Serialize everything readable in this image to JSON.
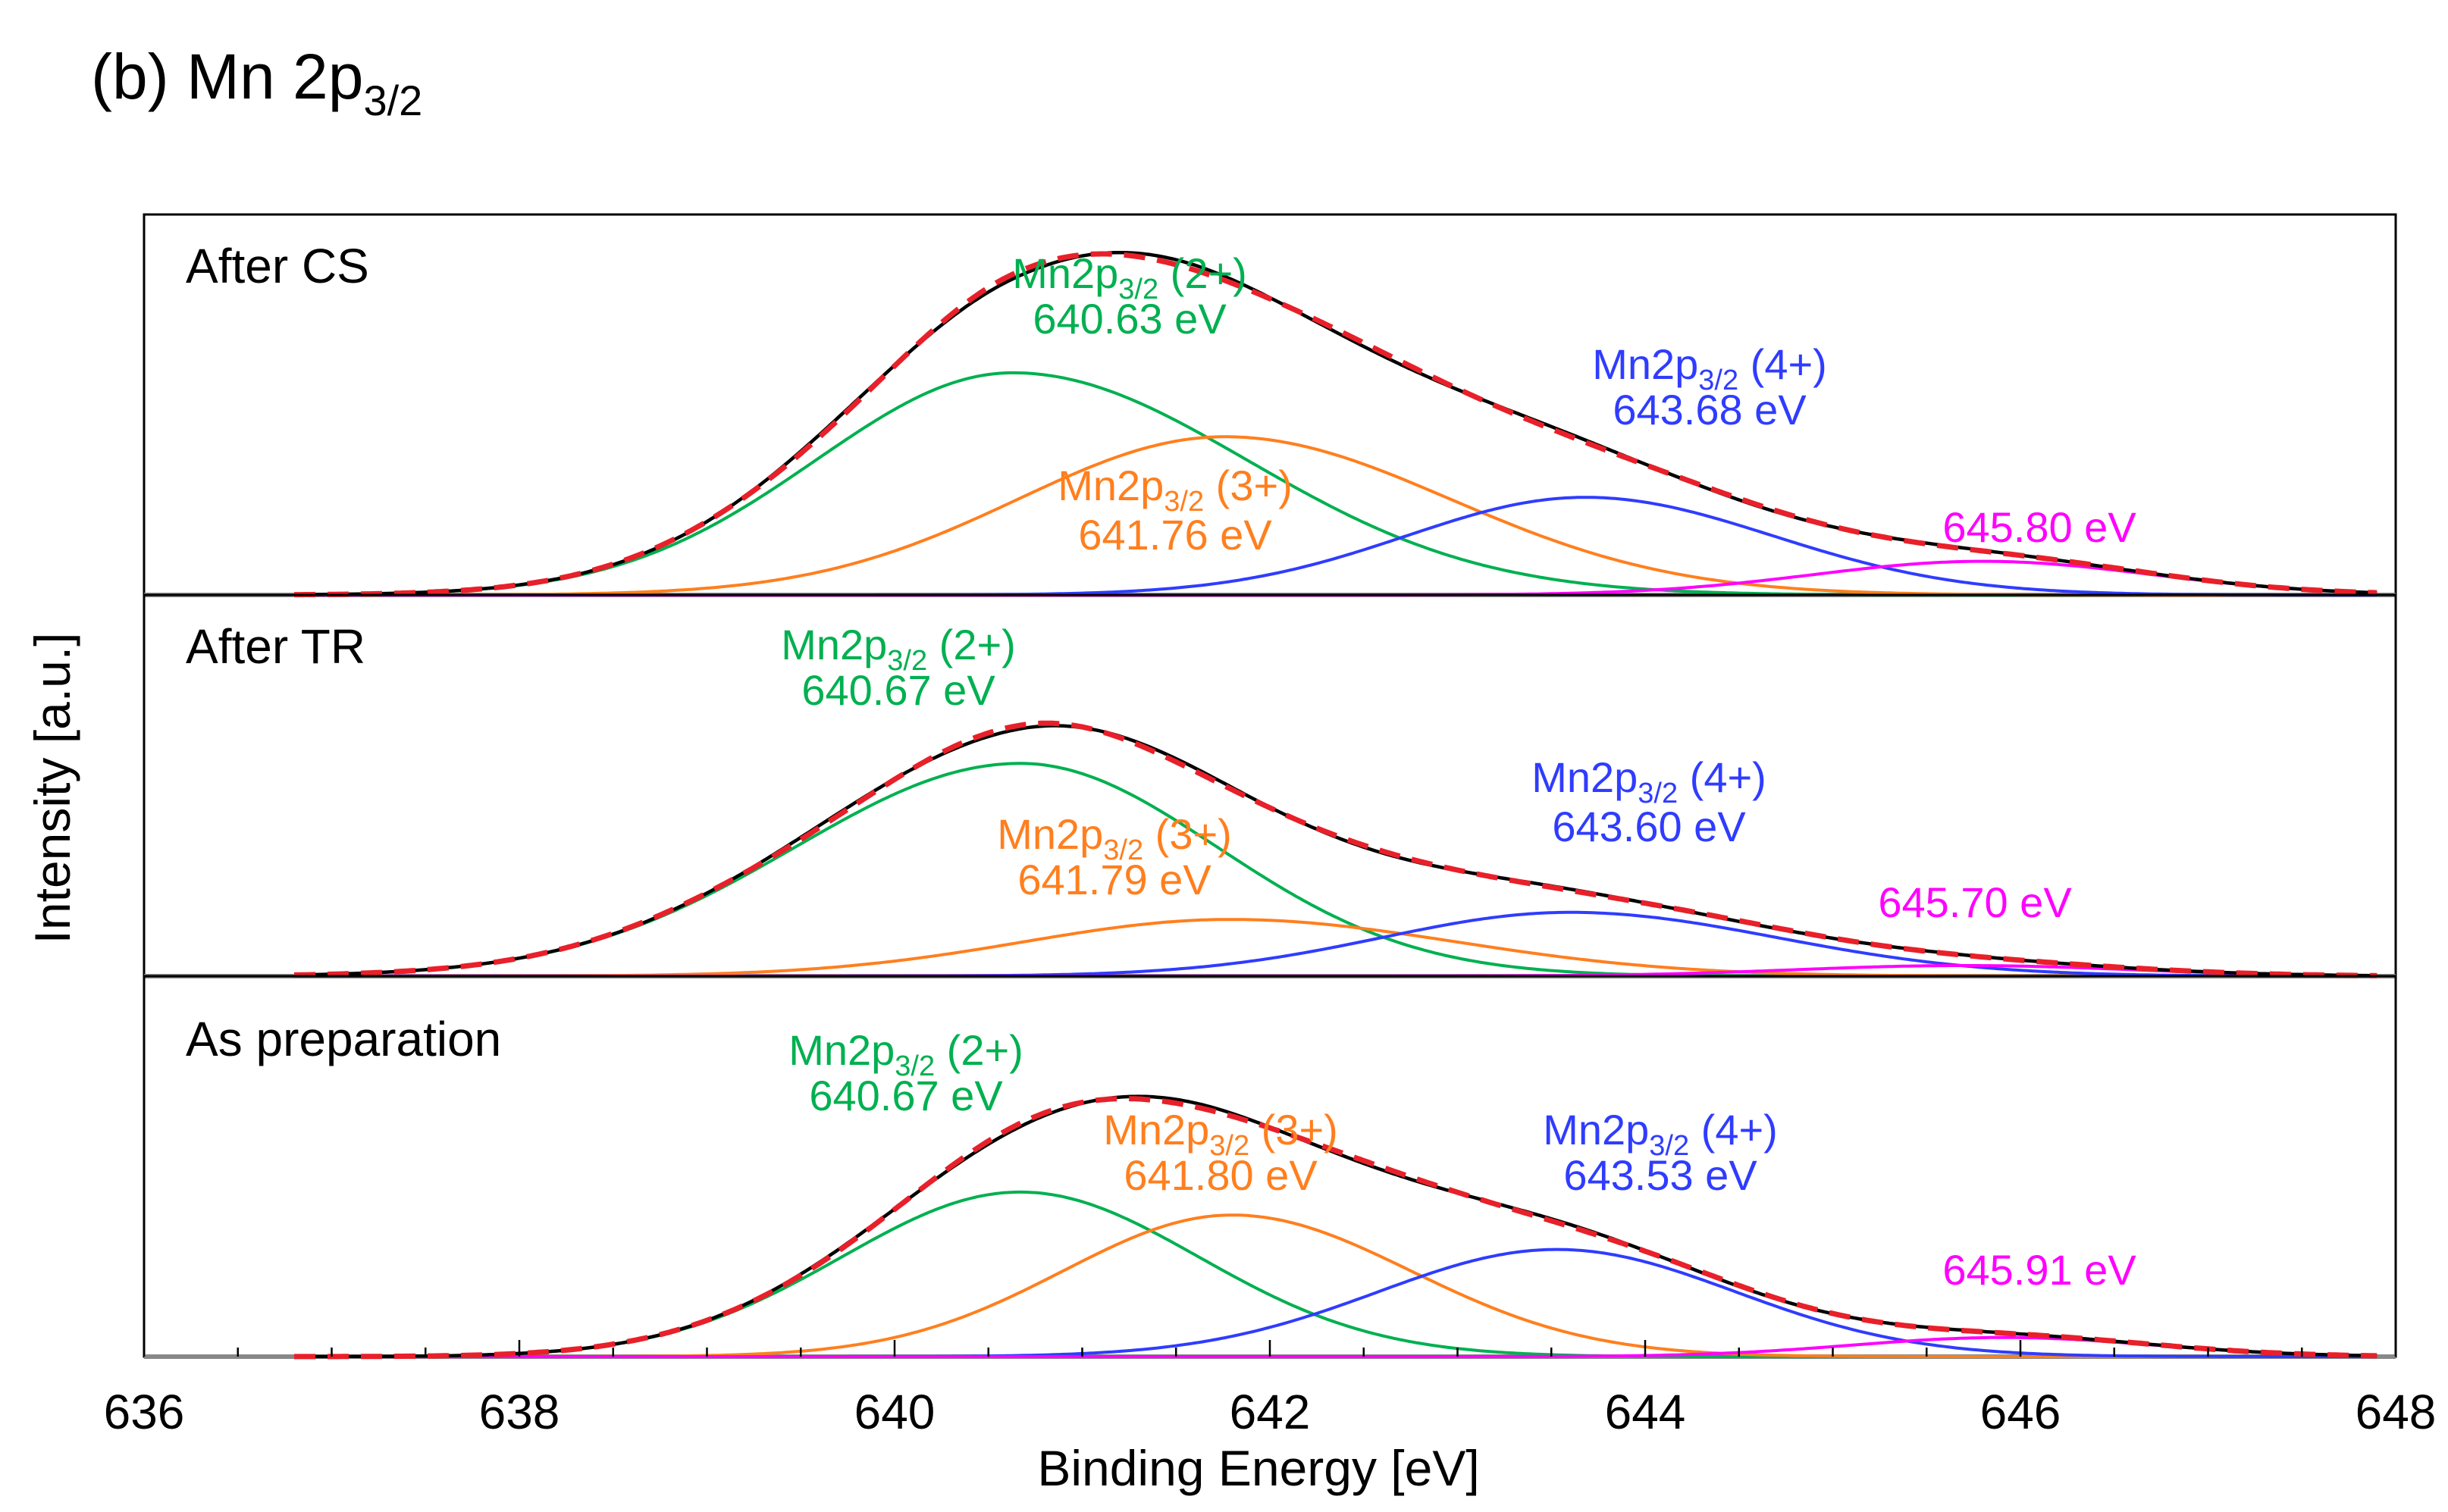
{
  "chart_data": {
    "type": "line",
    "title": "(b) Mn 2p",
    "title_subscript": "3/2",
    "xlabel": "Binding Energy [eV]",
    "ylabel": "Intensity [a.u.]",
    "xlim": [
      636,
      648
    ],
    "x_ticks": [
      "636",
      "638",
      "640",
      "642",
      "644",
      "646",
      "648"
    ],
    "x_tick_values": [
      636,
      638,
      640,
      642,
      644,
      646,
      648
    ],
    "colors": {
      "mn2": "#00b050",
      "mn3": "#ff7f1e",
      "mn4": "#2f3cff",
      "sat": "#ff00ff",
      "envelope": "#000000",
      "measured": "#e8202a"
    },
    "panels": [
      {
        "name": "After CS",
        "envelope_max": 1.0,
        "peaks": [
          {
            "species": "mn2",
            "label_main": "Mn2p",
            "label_sub": "3/2",
            "label_state": " (2+)",
            "energy_label": "640.63 eV",
            "center": 640.63,
            "height": 0.66,
            "sigma_left": 1.05,
            "sigma_right": 1.25
          },
          {
            "species": "mn3",
            "label_main": "Mn2p",
            "label_sub": "3/2",
            "label_state": " (3+)",
            "energy_label": "641.76 eV",
            "center": 641.76,
            "height": 0.47,
            "sigma_left": 1.1,
            "sigma_right": 1.2
          },
          {
            "species": "mn4",
            "label_main": "Mn2p",
            "label_sub": "3/2",
            "label_state": " (4+)",
            "energy_label": "643.68 eV",
            "center": 643.68,
            "height": 0.29,
            "sigma_left": 0.95,
            "sigma_right": 1.0
          },
          {
            "species": "sat",
            "energy_label": "645.80 eV",
            "center": 645.8,
            "height": 0.1,
            "sigma_left": 0.9,
            "sigma_right": 0.9
          }
        ]
      },
      {
        "name": "After TR",
        "envelope_max": 0.73,
        "peaks": [
          {
            "species": "mn2",
            "label_main": "Mn2p",
            "label_sub": "3/2",
            "label_state": " (2+)",
            "energy_label": "640.67 eV",
            "center": 640.67,
            "height": 0.6,
            "sigma_left": 1.2,
            "sigma_right": 1.05
          },
          {
            "species": "mn3",
            "label_main": "Mn2p",
            "label_sub": "3/2",
            "label_state": " (3+)",
            "energy_label": "641.79 eV",
            "center": 641.79,
            "height": 0.16,
            "sigma_left": 1.1,
            "sigma_right": 1.2
          },
          {
            "species": "mn4",
            "label_main": "Mn2p",
            "label_sub": "3/2",
            "label_state": " (4+)",
            "energy_label": "643.60 eV",
            "center": 643.6,
            "height": 0.18,
            "sigma_left": 1.0,
            "sigma_right": 1.1
          },
          {
            "species": "sat",
            "energy_label": "645.70 eV",
            "center": 645.7,
            "height": 0.03,
            "sigma_left": 0.9,
            "sigma_right": 0.9
          }
        ]
      },
      {
        "name": "As preparation",
        "envelope_max": 0.76,
        "peaks": [
          {
            "species": "mn2",
            "label_main": "Mn2p",
            "label_sub": "3/2",
            "label_state": " (2+)",
            "energy_label": "640.67 eV",
            "center": 640.67,
            "height": 0.43,
            "sigma_left": 0.95,
            "sigma_right": 0.95
          },
          {
            "species": "mn3",
            "label_main": "Mn2p",
            "label_sub": "3/2",
            "label_state": " (3+)",
            "energy_label": "641.80 eV",
            "center": 641.8,
            "height": 0.37,
            "sigma_left": 0.9,
            "sigma_right": 0.95
          },
          {
            "species": "mn4",
            "label_main": "Mn2p",
            "label_sub": "3/2",
            "label_state": " (4+)",
            "energy_label": "643.53 eV",
            "center": 643.53,
            "height": 0.28,
            "sigma_left": 0.95,
            "sigma_right": 0.95
          },
          {
            "species": "sat",
            "energy_label": "645.91 eV",
            "center": 645.91,
            "height": 0.05,
            "sigma_left": 0.8,
            "sigma_right": 0.8
          }
        ]
      }
    ]
  }
}
